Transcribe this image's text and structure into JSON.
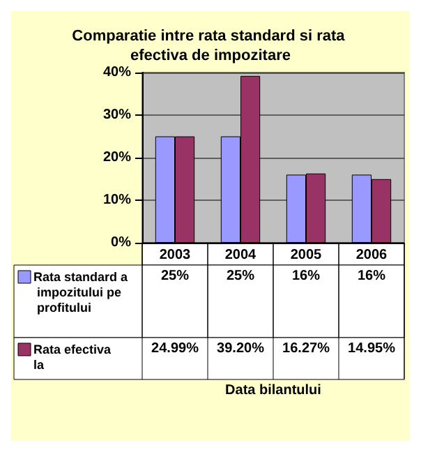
{
  "chart_data": {
    "type": "bar",
    "title": "Comparatie intre rata standard si rata efectiva de impozitare",
    "annotations": [
      "Data bilantului"
    ],
    "categories": [
      "2003",
      "2004",
      "2005",
      "2006"
    ],
    "series": [
      {
        "name": "Rata standard a impozitului pe profitului",
        "color": "#9999ff",
        "values": [
          25,
          25,
          16,
          16
        ],
        "value_labels": [
          "25%",
          "25%",
          "16%",
          "16%"
        ]
      },
      {
        "name": "Rata efectiva la",
        "color": "#993366",
        "values": [
          24.99,
          39.2,
          16.27,
          14.95
        ],
        "value_labels": [
          "24.99%",
          "39.20%",
          "16.27%",
          "14.95%"
        ]
      }
    ],
    "ylim": [
      0,
      40
    ],
    "yticks": [
      {
        "value": 0,
        "label": "0%"
      },
      {
        "value": 10,
        "label": "10%"
      },
      {
        "value": 20,
        "label": "20%"
      },
      {
        "value": 30,
        "label": "30%"
      },
      {
        "value": 40,
        "label": "40%"
      }
    ],
    "grid": "y",
    "legend": "bottom"
  }
}
